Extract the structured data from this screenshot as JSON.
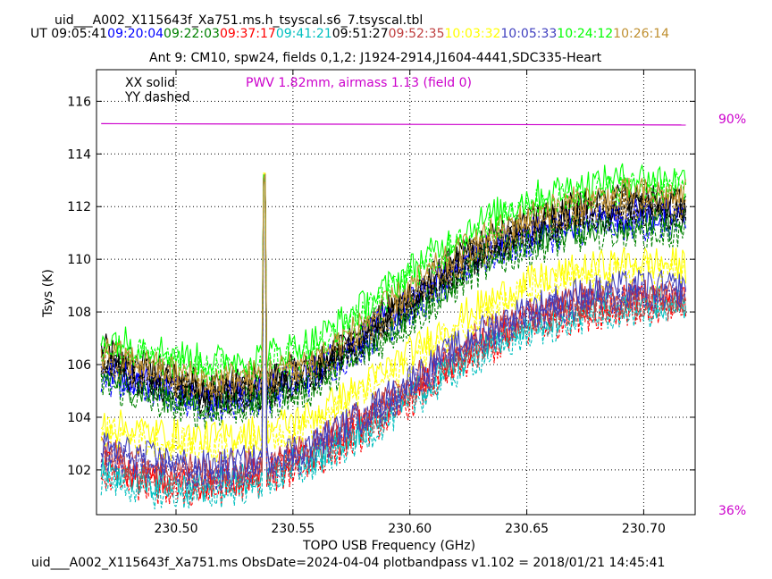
{
  "header": {
    "filename": "uid___A002_X115643f_Xa751.ms.h_tsyscal.s6_7.tsyscal.tbl",
    "ut_label": "UT",
    "times": [
      {
        "text": "09:05:41",
        "color": "#000000"
      },
      {
        "text": "09:20:04",
        "color": "#0000ff"
      },
      {
        "text": "09:22:03",
        "color": "#008000"
      },
      {
        "text": "09:37:17",
        "color": "#ff0000"
      },
      {
        "text": "09:41:21",
        "color": "#00bfbf"
      },
      {
        "text": "09:51:27",
        "color": "#000000"
      },
      {
        "text": "09:52:35",
        "color": "#bf3f3f"
      },
      {
        "text": "10:03:32",
        "color": "#ffff00"
      },
      {
        "text": "10:05:33",
        "color": "#3f3fbf"
      },
      {
        "text": "10:24:12",
        "color": "#00ff00"
      },
      {
        "text": "10:26:14",
        "color": "#bf8f2f"
      }
    ]
  },
  "chart_data": {
    "type": "line",
    "title": "Ant 9: CM10,  spw24,  fields 0,1,2: J1924-2914,J1604-4441,SDC335-Heart",
    "xlabel": "TOPO USB Frequency (GHz)",
    "ylabel": "Tsys (K)",
    "xlim": [
      230.466,
      230.722
    ],
    "ylim": [
      100.3,
      117.2
    ],
    "xticks": [
      230.5,
      230.55,
      230.6,
      230.65,
      230.7
    ],
    "xtick_labels": [
      "230.50",
      "230.55",
      "230.60",
      "230.65",
      "230.70"
    ],
    "yticks": [
      102,
      104,
      106,
      108,
      110,
      112,
      114,
      116
    ],
    "ytick_labels": [
      "102",
      "104",
      "106",
      "108",
      "110",
      "112",
      "114",
      "116"
    ],
    "grid": true,
    "legend_text": [
      "XX solid",
      "YY dashed"
    ],
    "pwv_annotation": "PWV 1.82mm, airmass 1.13 (field 0)",
    "right_axis_labels": {
      "top": "90%",
      "bottom": "36%"
    },
    "transmission_curve": {
      "color": "#cc00cc",
      "x": [
        230.468,
        230.718
      ],
      "y": [
        115.15,
        115.1
      ]
    },
    "spike": {
      "x": 230.538,
      "peak": 113.3
    },
    "series": [
      {
        "time": "09:05:41",
        "color": "#000000",
        "profile": [
          106.6,
          105.8,
          105.2,
          105.4,
          106.0,
          107.4,
          109.0,
          110.4,
          111.4,
          112.0,
          112.3,
          112.2
        ]
      },
      {
        "time": "09:20:04",
        "color": "#0000ff",
        "profile": [
          105.8,
          105.3,
          104.8,
          105.0,
          105.8,
          107.2,
          108.6,
          110.2,
          111.0,
          111.5,
          111.7,
          111.6
        ]
      },
      {
        "time": "09:22:03",
        "color": "#008000",
        "profile": [
          105.6,
          104.9,
          104.5,
          104.8,
          105.4,
          106.8,
          108.2,
          109.8,
          110.7,
          111.2,
          111.4,
          111.3
        ]
      },
      {
        "time": "09:37:17",
        "color": "#ff0000",
        "profile": [
          102.2,
          101.6,
          101.5,
          101.9,
          102.6,
          103.8,
          105.2,
          106.6,
          107.6,
          108.2,
          108.5,
          108.4
        ]
      },
      {
        "time": "09:41:21",
        "color": "#00bfbf",
        "profile": [
          102.0,
          101.5,
          101.4,
          101.8,
          102.5,
          103.7,
          105.1,
          106.5,
          107.5,
          108.1,
          108.4,
          108.3
        ]
      },
      {
        "time": "09:51:27",
        "color": "#000000",
        "profile": [
          106.3,
          105.6,
          105.0,
          105.2,
          105.9,
          107.3,
          108.9,
          110.3,
          111.3,
          111.9,
          112.2,
          112.1
        ]
      },
      {
        "time": "09:52:35",
        "color": "#bf3f3f",
        "profile": [
          102.8,
          102.2,
          102.0,
          102.3,
          103.0,
          104.2,
          105.6,
          107.0,
          108.0,
          108.5,
          108.7,
          108.6
        ]
      },
      {
        "time": "10:03:32",
        "color": "#ffff00",
        "profile": [
          103.8,
          103.4,
          103.2,
          103.5,
          104.1,
          105.3,
          106.7,
          108.1,
          109.1,
          109.6,
          109.9,
          109.8
        ]
      },
      {
        "time": "10:05:33",
        "color": "#3f3fbf",
        "profile": [
          102.9,
          102.4,
          102.1,
          102.4,
          103.0,
          104.2,
          105.7,
          107.1,
          108.1,
          108.7,
          109.0,
          108.9
        ]
      },
      {
        "time": "10:24:12",
        "color": "#00ff00",
        "profile": [
          107.1,
          106.6,
          106.1,
          106.3,
          106.9,
          108.3,
          109.9,
          111.3,
          112.3,
          112.8,
          113.1,
          113.0
        ]
      },
      {
        "time": "10:26:14",
        "color": "#bf8f2f",
        "profile": [
          106.5,
          105.9,
          105.4,
          105.6,
          106.2,
          107.6,
          109.2,
          110.6,
          111.6,
          112.2,
          112.5,
          112.4
        ]
      }
    ]
  },
  "footer": {
    "text": "uid___A002_X115643f_Xa751.ms  ObsDate=2024-04-04   plotbandpass v1.102 = 2018/01/21 14:45:41"
  }
}
